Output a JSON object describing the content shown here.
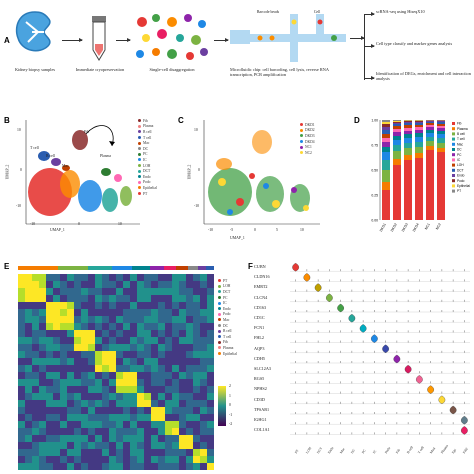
{
  "panels": {
    "A": {
      "letter": "A",
      "steps": [
        "Kidney biopsy samples",
        "Immediate cryopreservation",
        "Single-cell disaggregation",
        "Microfluidic chip: cell barcoding, cell lysis, reverse RNA transcription, PCR amplification"
      ],
      "barcode_label": "Barcode beads",
      "cell_label": "Cell",
      "outputs": [
        "scRNA-seq using HiseqX10",
        "Cell type classify and marker genes analysis",
        "Identification of DEGs, enrichment and cell interaction analysis"
      ]
    },
    "B": {
      "letter": "B",
      "xlabel": "UMAP_1",
      "ylabel": "UMAP_2",
      "xticks": [
        "-10",
        "0",
        "10"
      ],
      "yticks": [
        "10",
        "0",
        "-10"
      ],
      "clusters": [
        {
          "name": "Fib",
          "color": "#8a2a2a"
        },
        {
          "name": "Plasma",
          "color": "#f08080"
        },
        {
          "name": "B cell",
          "color": "#6b3fa0"
        },
        {
          "name": "T cell",
          "color": "#2a5db0"
        },
        {
          "name": "Mac",
          "color": "#c04000"
        },
        {
          "name": "DC",
          "color": "#888888"
        },
        {
          "name": "PC",
          "color": "#2e7d32"
        },
        {
          "name": "IC",
          "color": "#1e88e5"
        },
        {
          "name": "LOH",
          "color": "#7cb342"
        },
        {
          "name": "DCT",
          "color": "#26a69a"
        },
        {
          "name": "Endo",
          "color": "#00838f"
        },
        {
          "name": "Podo",
          "color": "#ff69b4"
        },
        {
          "name": "Epithelial",
          "color": "#f57c00"
        },
        {
          "name": "PT",
          "color": "#e53935"
        }
      ],
      "annotations": [
        "T cell",
        "B cell",
        "Mac",
        "Fib",
        "Plasma"
      ]
    },
    "C": {
      "letter": "C",
      "xlabel": "UMAP_1",
      "ylabel": "UMAP_2",
      "xticks": [
        "-10",
        "-5",
        "0",
        "5",
        "10"
      ],
      "yticks": [
        "10",
        "0",
        "-10"
      ],
      "samples": [
        {
          "name": "DKD1",
          "color": "#e53935"
        },
        {
          "name": "DKD2",
          "color": "#fb8c00"
        },
        {
          "name": "DKD3",
          "color": "#43a047"
        },
        {
          "name": "DKD4",
          "color": "#1e88e5"
        },
        {
          "name": "NC1",
          "color": "#8e24aa"
        },
        {
          "name": "NC2",
          "color": "#fdd835"
        }
      ]
    },
    "D": {
      "letter": "D",
      "yticks": [
        "1.00",
        "0.75",
        "0.50",
        "0.25",
        "0.00"
      ],
      "bars": [
        "DKD1",
        "DKD2",
        "DKD3",
        "DKD4",
        "NC1",
        "NC2"
      ]
    },
    "E": {
      "letter": "E",
      "colorbar_ticks": [
        "2",
        "1",
        "0",
        "-1",
        "-2"
      ],
      "legend": [
        "PT",
        "LOH",
        "DCT",
        "PC",
        "IC",
        "Endo",
        "Podo",
        "Mac",
        "DC",
        "B cell",
        "T cell",
        "Fib",
        "Plasma",
        "Epithelial"
      ]
    },
    "F": {
      "letter": "F",
      "genes": [
        "CUBN",
        "CLDN16",
        "EMRT2",
        "CLCN4",
        "CD163",
        "CD1C",
        "FCN1",
        "FHL2",
        "AQP3",
        "CDH5",
        "SLC12A3",
        "RGS5",
        "NPHS2",
        "CD3D",
        "TPSAB1",
        "IGHG1",
        "COL1A1"
      ],
      "cell_types": [
        "PT",
        "LOH",
        "DCT",
        "Endo",
        "Mac",
        "DC",
        "PC",
        "IC",
        "Podo",
        "Fib",
        "B cell",
        "T cell",
        "Mast",
        "Plasma",
        "Epi",
        "Fib2"
      ]
    }
  }
}
